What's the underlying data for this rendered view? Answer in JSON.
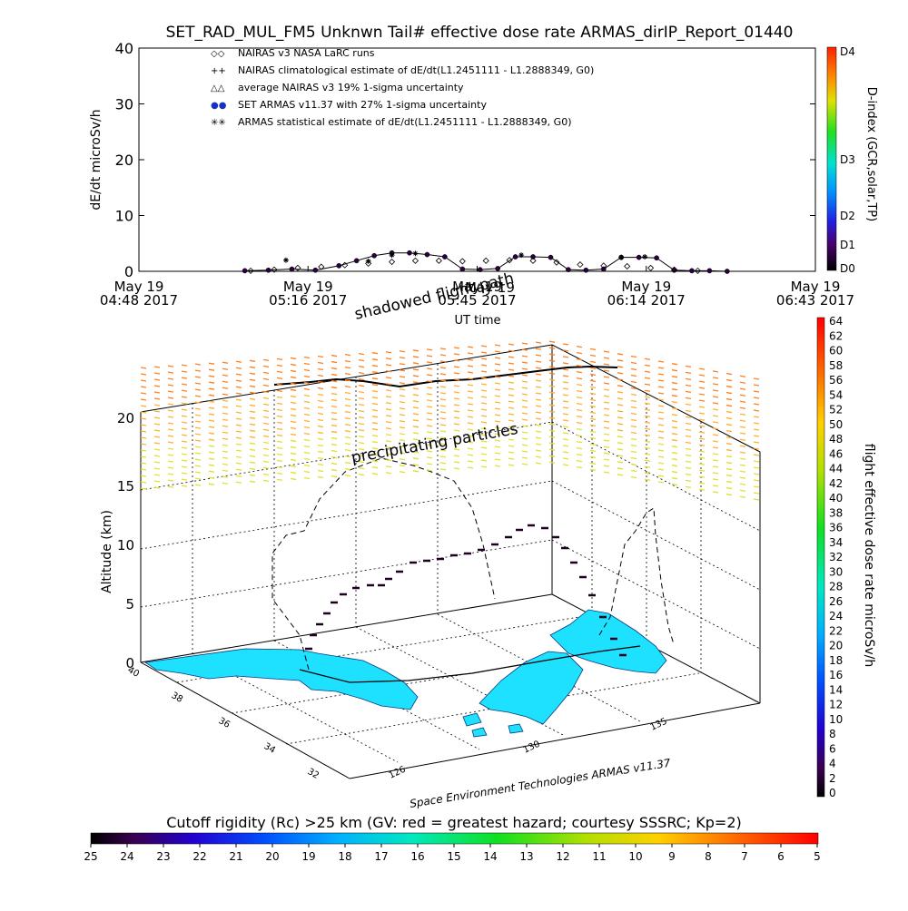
{
  "title": "SET_RAD_MUL_FM5 Unknwn Tail#  effective dose rate ARMAS_dirIP_Report_01440",
  "top_chart": {
    "ylabel": "dE/dt microSv/h",
    "xlabel": "UT time",
    "y_ticks": [
      "0",
      "10",
      "20",
      "30",
      "40"
    ],
    "x_ticks": [
      {
        "l1": "May 19",
        "l2": "04:48 2017"
      },
      {
        "l1": "May 19",
        "l2": "05:16 2017"
      },
      {
        "l1": "May 19",
        "l2": "05:45 2017"
      },
      {
        "l1": "May 19",
        "l2": "06:14 2017"
      },
      {
        "l1": "May 19",
        "l2": "06:43 2017"
      }
    ],
    "legend": [
      {
        "symbol": "◇◇",
        "text": "NAIRAS v3 NASA LaRC runs"
      },
      {
        "symbol": "++",
        "text": "NAIRAS climatological estimate of dE/dt(L1.2451111 - L1.2888349, G0)"
      },
      {
        "symbol": "△△",
        "text": "average NAIRAS v3 19% 1-sigma uncertainty"
      },
      {
        "symbol": "●●",
        "text": "SET ARMAS v11.37 with 27% 1-sigma uncertainty"
      },
      {
        "symbol": "✳✳",
        "text": "ARMAS statistical estimate of dE/dt(L1.2451111 - L1.2888349, G0)"
      }
    ],
    "dindex_label": "D-index (GCR,solar,TP)",
    "dindex_ticks": [
      "D4",
      "D3",
      "D2",
      "D1",
      "D0"
    ]
  },
  "overlay_text": {
    "mid_label": "May 19",
    "shadowed": "shadowed flight path",
    "precipitating": "precipitating particles",
    "credit": "Space Environment Technologies ARMAS v11.37"
  },
  "map3d": {
    "zlabel": "Altitude (km)",
    "z_ticks": [
      "0",
      "5",
      "10",
      "15",
      "20"
    ],
    "lat_ticks": [
      "40",
      "38",
      "36",
      "34",
      "32"
    ],
    "lon_ticks": [
      "126",
      "130",
      "135"
    ]
  },
  "right_colorbar": {
    "label": "flight effective dose rate microSv/h",
    "ticks": [
      "64",
      "62",
      "60",
      "58",
      "56",
      "54",
      "52",
      "50",
      "48",
      "46",
      "44",
      "42",
      "40",
      "38",
      "36",
      "34",
      "32",
      "30",
      "28",
      "26",
      "24",
      "22",
      "20",
      "18",
      "16",
      "14",
      "12",
      "10",
      "8",
      "6",
      "4",
      "2",
      "0"
    ]
  },
  "bottom_colorbar": {
    "label": "Cutoff rigidity (Rc) >25 km (GV: red = greatest hazard; courtesy SSSRC; Kp=2)",
    "ticks": [
      "25",
      "24",
      "23",
      "22",
      "21",
      "20",
      "19",
      "18",
      "17",
      "16",
      "15",
      "14",
      "13",
      "12",
      "11",
      "10",
      "9",
      "8",
      "7",
      "6",
      "5"
    ]
  },
  "chart_data": {
    "type": "scatter",
    "title": "SET_RAD_MUL_FM5 Unknwn Tail#  effective dose rate ARMAS_dirIP_Report_01440",
    "xlabel": "UT time",
    "ylabel": "dE/dt microSv/h",
    "ylim": [
      0,
      40
    ],
    "xlim_minutes_ut": [
      288,
      403
    ],
    "x_unit": "minutes of day UT (May 19 2017)",
    "series": [
      {
        "name": "NAIRAS v3 NASA LaRC runs",
        "x": [
          307,
          311,
          315,
          319,
          323,
          327,
          331,
          335,
          339,
          343,
          347,
          351,
          355,
          359,
          363,
          367,
          371,
          375,
          379,
          383
        ],
        "values": [
          0.1,
          0.3,
          0.6,
          0.8,
          1.1,
          1.4,
          1.7,
          1.9,
          1.9,
          1.8,
          1.9,
          2.0,
          1.9,
          1.6,
          1.2,
          1.0,
          0.9,
          0.6,
          0.3,
          0.1
        ]
      },
      {
        "name": "SET ARMAS v11.37 with 27% 1-sigma uncertainty",
        "x": [
          306,
          310,
          314,
          318,
          322,
          325,
          328,
          331,
          334,
          337,
          340,
          343,
          346,
          349,
          352,
          355,
          358,
          361,
          364,
          367,
          370,
          373,
          376,
          379,
          382,
          385,
          388
        ],
        "values": [
          0.1,
          0.2,
          0.4,
          0.2,
          1.0,
          1.9,
          2.8,
          3.3,
          3.3,
          3.0,
          2.6,
          0.4,
          0.3,
          0.5,
          2.6,
          2.6,
          2.5,
          0.3,
          0.2,
          0.4,
          2.5,
          2.5,
          2.4,
          0.2,
          0.1,
          0.1,
          0.0
        ]
      },
      {
        "name": "ARMAS statistical estimate of dE/dt(L1.2451111 - L1.2888349, G0)",
        "x": [
          313,
          327,
          331,
          335,
          353,
          370,
          374
        ],
        "values": [
          2.0,
          1.8,
          2.9,
          3.2,
          2.9,
          2.5,
          2.6
        ]
      }
    ]
  }
}
